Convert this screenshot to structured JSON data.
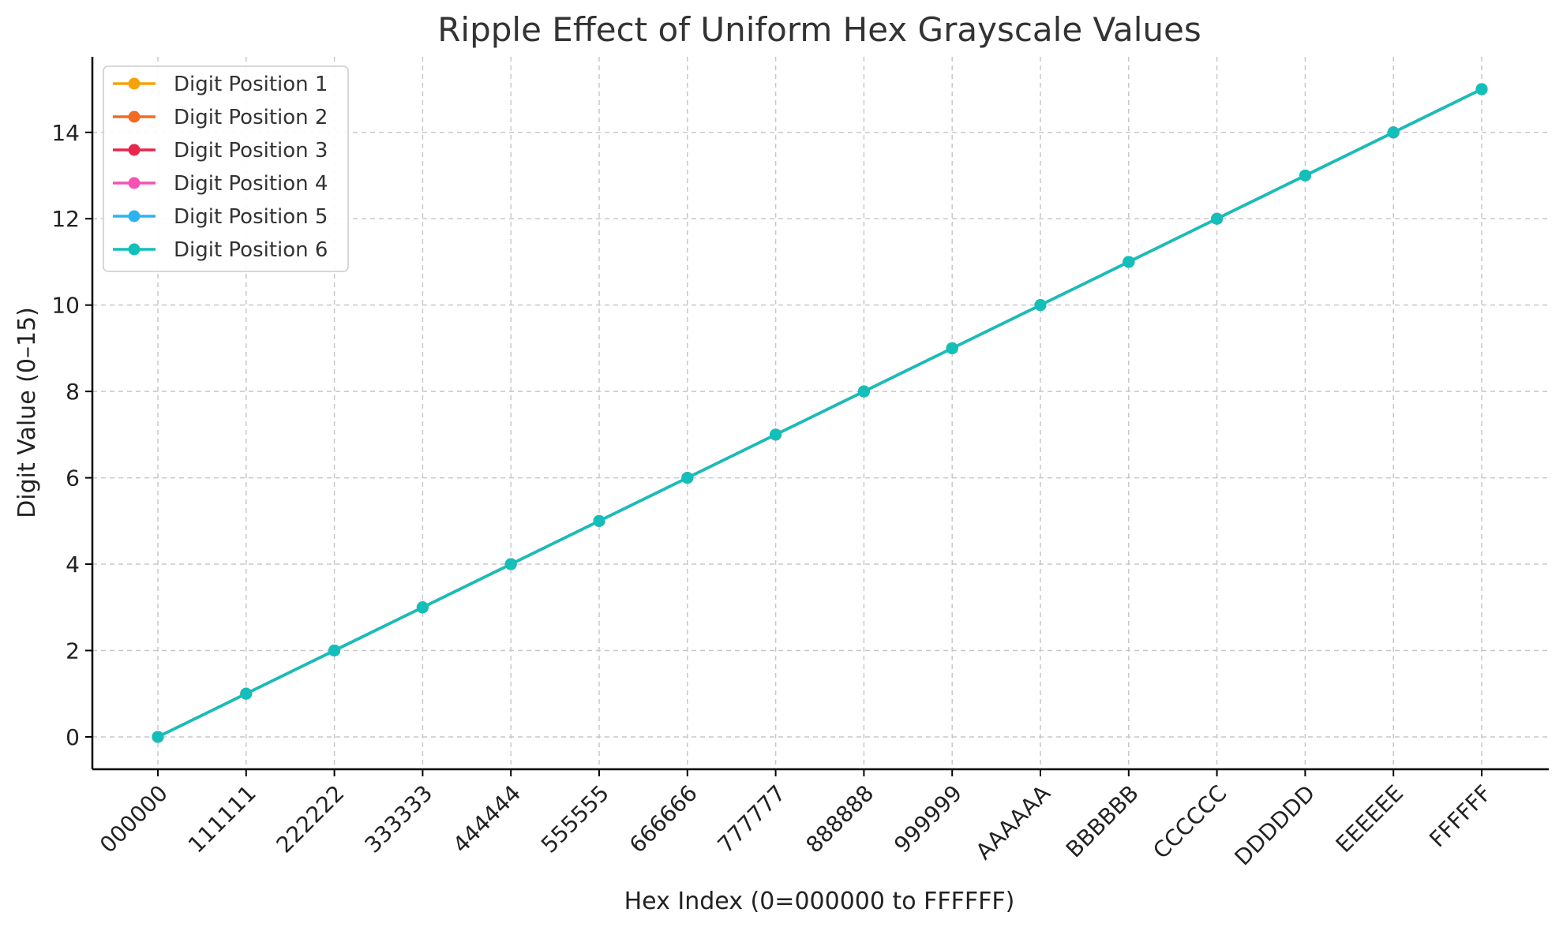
{
  "chart_data": {
    "type": "line",
    "title": "Ripple Effect of Uniform Hex Grayscale Values",
    "xlabel": "Hex Index (0=000000 to FFFFFF)",
    "ylabel": "Digit Value (0–15)",
    "categories": [
      "000000",
      "111111",
      "222222",
      "333333",
      "444444",
      "555555",
      "666666",
      "777777",
      "888888",
      "999999",
      "AAAAAA",
      "BBBBBB",
      "CCCCCC",
      "DDDDDD",
      "EEEEEE",
      "FFFFFF"
    ],
    "ylim": [
      -0.75,
      15.75
    ],
    "yticks": [
      0,
      2,
      4,
      6,
      8,
      10,
      12,
      14
    ],
    "grid": true,
    "legend_position": "top-left",
    "series": [
      {
        "name": "Digit Position 1",
        "color": "#f5a30a",
        "values": [
          0,
          1,
          2,
          3,
          4,
          5,
          6,
          7,
          8,
          9,
          10,
          11,
          12,
          13,
          14,
          15
        ]
      },
      {
        "name": "Digit Position 2",
        "color": "#f26b22",
        "values": [
          0,
          1,
          2,
          3,
          4,
          5,
          6,
          7,
          8,
          9,
          10,
          11,
          12,
          13,
          14,
          15
        ]
      },
      {
        "name": "Digit Position 3",
        "color": "#e8264b",
        "values": [
          0,
          1,
          2,
          3,
          4,
          5,
          6,
          7,
          8,
          9,
          10,
          11,
          12,
          13,
          14,
          15
        ]
      },
      {
        "name": "Digit Position 4",
        "color": "#f452b4",
        "values": [
          0,
          1,
          2,
          3,
          4,
          5,
          6,
          7,
          8,
          9,
          10,
          11,
          12,
          13,
          14,
          15
        ]
      },
      {
        "name": "Digit Position 5",
        "color": "#2ab3ef",
        "values": [
          0,
          1,
          2,
          3,
          4,
          5,
          6,
          7,
          8,
          9,
          10,
          11,
          12,
          13,
          14,
          15
        ]
      },
      {
        "name": "Digit Position 6",
        "color": "#12c0b9",
        "values": [
          0,
          1,
          2,
          3,
          4,
          5,
          6,
          7,
          8,
          9,
          10,
          11,
          12,
          13,
          14,
          15
        ]
      }
    ]
  }
}
